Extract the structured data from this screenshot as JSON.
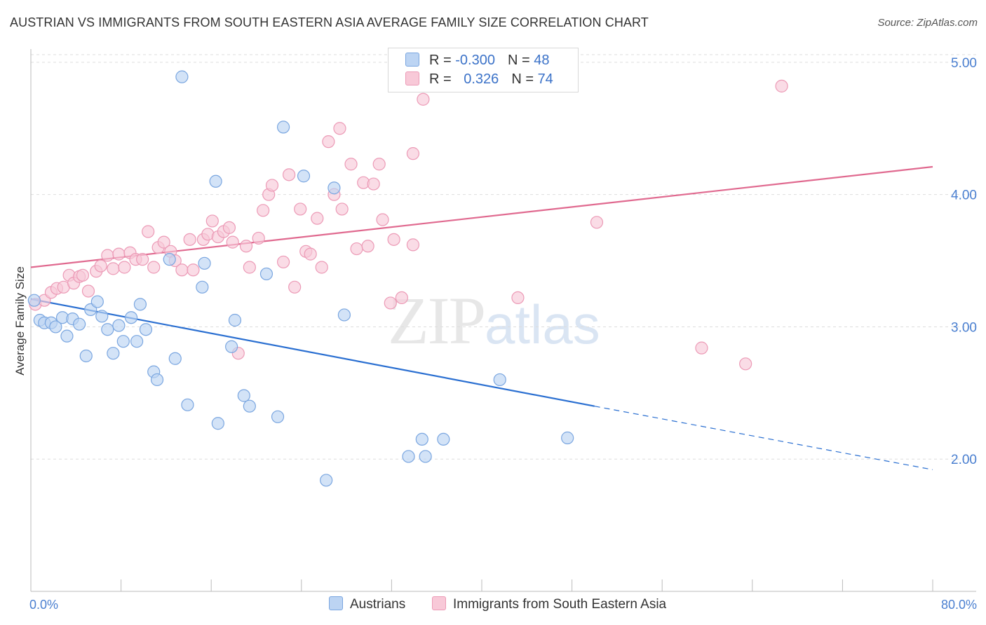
{
  "title": "AUSTRIAN VS IMMIGRANTS FROM SOUTH EASTERN ASIA AVERAGE FAMILY SIZE CORRELATION CHART",
  "source": "Source: ZipAtlas.com",
  "watermark": {
    "zip": "ZIP",
    "atlas": "atlas"
  },
  "legend": {
    "rows": [
      {
        "r_label": "R = ",
        "r_value": "-0.300",
        "n_label": "N = ",
        "n_value": "48"
      },
      {
        "r_label": "R = ",
        "r_value": "0.326",
        "n_label": "N = ",
        "n_value": "74"
      }
    ]
  },
  "bottom_legend": [
    "Austrians",
    "Immigrants from South Eastern Asia"
  ],
  "colors": {
    "austrians_fill": "#bcd4f3",
    "austrians_stroke": "#7aa6e0",
    "austrians_line": "#2a6fd1",
    "immigrants_fill": "#f8c9d8",
    "immigrants_stroke": "#ec9ab6",
    "immigrants_line": "#e0698f",
    "tick_color": "#4a7fd0"
  },
  "chart_data": {
    "type": "scatter",
    "title": "AUSTRIAN VS IMMIGRANTS FROM SOUTH EASTERN ASIA AVERAGE FAMILY SIZE CORRELATION CHART",
    "xlabel": "",
    "ylabel": "Average Family Size",
    "xlim": [
      0,
      80
    ],
    "ylim": [
      1.0,
      5.1
    ],
    "x_tick_labels": [
      "0.0%",
      "80.0%"
    ],
    "y_ticks": [
      2.0,
      3.0,
      4.0,
      5.0
    ],
    "y_tick_labels": [
      "2.00",
      "3.00",
      "4.00",
      "5.00"
    ],
    "grid": "horizontal dashed",
    "series": [
      {
        "name": "Austrians",
        "R": -0.3,
        "N": 48,
        "points": [
          [
            0.3,
            3.2
          ],
          [
            0.8,
            3.05
          ],
          [
            1.2,
            3.03
          ],
          [
            1.8,
            3.03
          ],
          [
            2.2,
            3.0
          ],
          [
            2.8,
            3.07
          ],
          [
            3.2,
            2.93
          ],
          [
            3.7,
            3.06
          ],
          [
            4.3,
            3.02
          ],
          [
            4.9,
            2.78
          ],
          [
            5.3,
            3.13
          ],
          [
            5.9,
            3.19
          ],
          [
            6.3,
            3.08
          ],
          [
            6.8,
            2.98
          ],
          [
            7.3,
            2.8
          ],
          [
            7.8,
            3.01
          ],
          [
            8.2,
            2.89
          ],
          [
            8.9,
            3.07
          ],
          [
            9.4,
            2.89
          ],
          [
            9.7,
            3.17
          ],
          [
            10.2,
            2.98
          ],
          [
            10.9,
            2.66
          ],
          [
            11.2,
            2.6
          ],
          [
            12.3,
            3.51
          ],
          [
            12.8,
            2.76
          ],
          [
            13.4,
            4.89
          ],
          [
            13.9,
            2.41
          ],
          [
            15.2,
            3.3
          ],
          [
            15.4,
            3.48
          ],
          [
            16.4,
            4.1
          ],
          [
            16.6,
            2.27
          ],
          [
            17.8,
            2.85
          ],
          [
            18.1,
            3.05
          ],
          [
            18.9,
            2.48
          ],
          [
            19.4,
            2.4
          ],
          [
            20.9,
            3.4
          ],
          [
            21.9,
            2.32
          ],
          [
            22.4,
            4.51
          ],
          [
            24.2,
            4.14
          ],
          [
            26.2,
            1.84
          ],
          [
            26.9,
            4.05
          ],
          [
            27.8,
            3.09
          ],
          [
            33.5,
            2.02
          ],
          [
            34.7,
            2.15
          ],
          [
            35.0,
            2.02
          ],
          [
            36.6,
            2.15
          ],
          [
            41.6,
            2.6
          ],
          [
            47.6,
            2.16
          ]
        ]
      },
      {
        "name": "Immigrants from South Eastern Asia",
        "R": 0.326,
        "N": 74,
        "points": [
          [
            0.4,
            3.17
          ],
          [
            1.2,
            3.2
          ],
          [
            1.8,
            3.26
          ],
          [
            2.3,
            3.29
          ],
          [
            2.9,
            3.3
          ],
          [
            3.4,
            3.39
          ],
          [
            3.8,
            3.33
          ],
          [
            4.3,
            3.38
          ],
          [
            4.6,
            3.39
          ],
          [
            5.1,
            3.27
          ],
          [
            5.8,
            3.42
          ],
          [
            6.2,
            3.46
          ],
          [
            6.8,
            3.54
          ],
          [
            7.3,
            3.44
          ],
          [
            7.8,
            3.55
          ],
          [
            8.3,
            3.45
          ],
          [
            8.8,
            3.56
          ],
          [
            9.3,
            3.51
          ],
          [
            9.9,
            3.51
          ],
          [
            10.4,
            3.72
          ],
          [
            10.9,
            3.45
          ],
          [
            11.3,
            3.6
          ],
          [
            11.8,
            3.64
          ],
          [
            12.4,
            3.57
          ],
          [
            12.8,
            3.5
          ],
          [
            13.4,
            3.43
          ],
          [
            14.1,
            3.66
          ],
          [
            14.4,
            3.43
          ],
          [
            15.3,
            3.66
          ],
          [
            15.7,
            3.7
          ],
          [
            16.1,
            3.8
          ],
          [
            16.6,
            3.68
          ],
          [
            17.1,
            3.72
          ],
          [
            17.6,
            3.75
          ],
          [
            17.9,
            3.64
          ],
          [
            18.4,
            2.8
          ],
          [
            19.1,
            3.61
          ],
          [
            19.4,
            3.45
          ],
          [
            20.2,
            3.67
          ],
          [
            20.6,
            3.88
          ],
          [
            21.1,
            4.0
          ],
          [
            21.4,
            4.07
          ],
          [
            22.4,
            3.49
          ],
          [
            22.9,
            4.15
          ],
          [
            23.4,
            3.3
          ],
          [
            23.9,
            3.89
          ],
          [
            24.4,
            3.57
          ],
          [
            24.8,
            3.55
          ],
          [
            25.4,
            3.82
          ],
          [
            25.8,
            3.45
          ],
          [
            26.4,
            4.4
          ],
          [
            26.9,
            4.0
          ],
          [
            27.4,
            4.5
          ],
          [
            27.6,
            3.89
          ],
          [
            28.4,
            4.23
          ],
          [
            28.9,
            3.59
          ],
          [
            29.5,
            4.09
          ],
          [
            29.9,
            3.61
          ],
          [
            30.4,
            4.08
          ],
          [
            30.9,
            4.23
          ],
          [
            31.2,
            3.81
          ],
          [
            31.9,
            3.18
          ],
          [
            32.2,
            3.66
          ],
          [
            32.9,
            3.22
          ],
          [
            33.9,
            4.31
          ],
          [
            33.9,
            3.62
          ],
          [
            34.8,
            4.72
          ],
          [
            35.8,
            4.82
          ],
          [
            36.4,
            4.84
          ],
          [
            43.2,
            3.22
          ],
          [
            50.2,
            3.79
          ],
          [
            59.5,
            2.84
          ],
          [
            63.4,
            2.72
          ],
          [
            66.6,
            4.82
          ]
        ]
      }
    ],
    "trend_lines": [
      {
        "name": "Austrians",
        "solid": [
          [
            0,
            3.21
          ],
          [
            50,
            2.4
          ]
        ],
        "dashed": [
          [
            50,
            2.4
          ],
          [
            80,
            1.92
          ]
        ]
      },
      {
        "name": "Immigrants from South Eastern Asia",
        "solid": [
          [
            0,
            3.45
          ],
          [
            80,
            4.21
          ]
        ]
      }
    ]
  }
}
